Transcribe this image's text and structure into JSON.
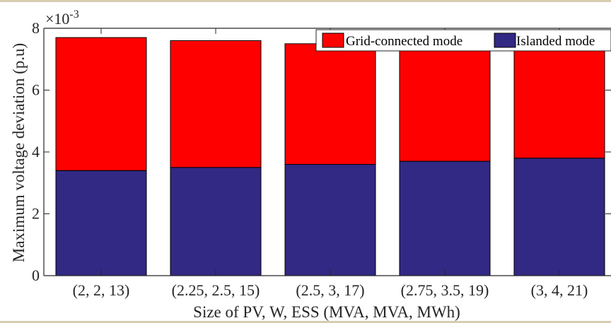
{
  "chart_data": {
    "type": "bar",
    "stacked": true,
    "categories": [
      "(2, 2, 13)",
      "(2.25, 2.5, 15)",
      "(2.5, 3, 17)",
      "(2.75, 3.5, 19)",
      "(3, 4, 21)"
    ],
    "series": [
      {
        "name": "Islanded mode",
        "color": "#312983",
        "values": [
          3.4,
          3.5,
          3.6,
          3.7,
          3.8
        ]
      },
      {
        "name": "Grid-connected mode",
        "color": "#ff0000",
        "values": [
          4.3,
          4.1,
          3.9,
          3.7,
          3.5
        ]
      }
    ],
    "totals": [
      7.7,
      7.6,
      7.5,
      7.4,
      7.3
    ],
    "xlabel": "Size of PV, W, ESS (MVA, MVA, MWh)",
    "ylabel": "Maximum voltage deviation (p.u)",
    "ylim": [
      0,
      8
    ],
    "yticks": [
      "0",
      "2",
      "4",
      "6",
      "8"
    ],
    "yscale_base": "×10",
    "yscale_exponent": "-3",
    "legend_order": [
      "Grid-connected mode",
      "Islanded mode"
    ],
    "legend_position": "top-right",
    "grid": false
  }
}
